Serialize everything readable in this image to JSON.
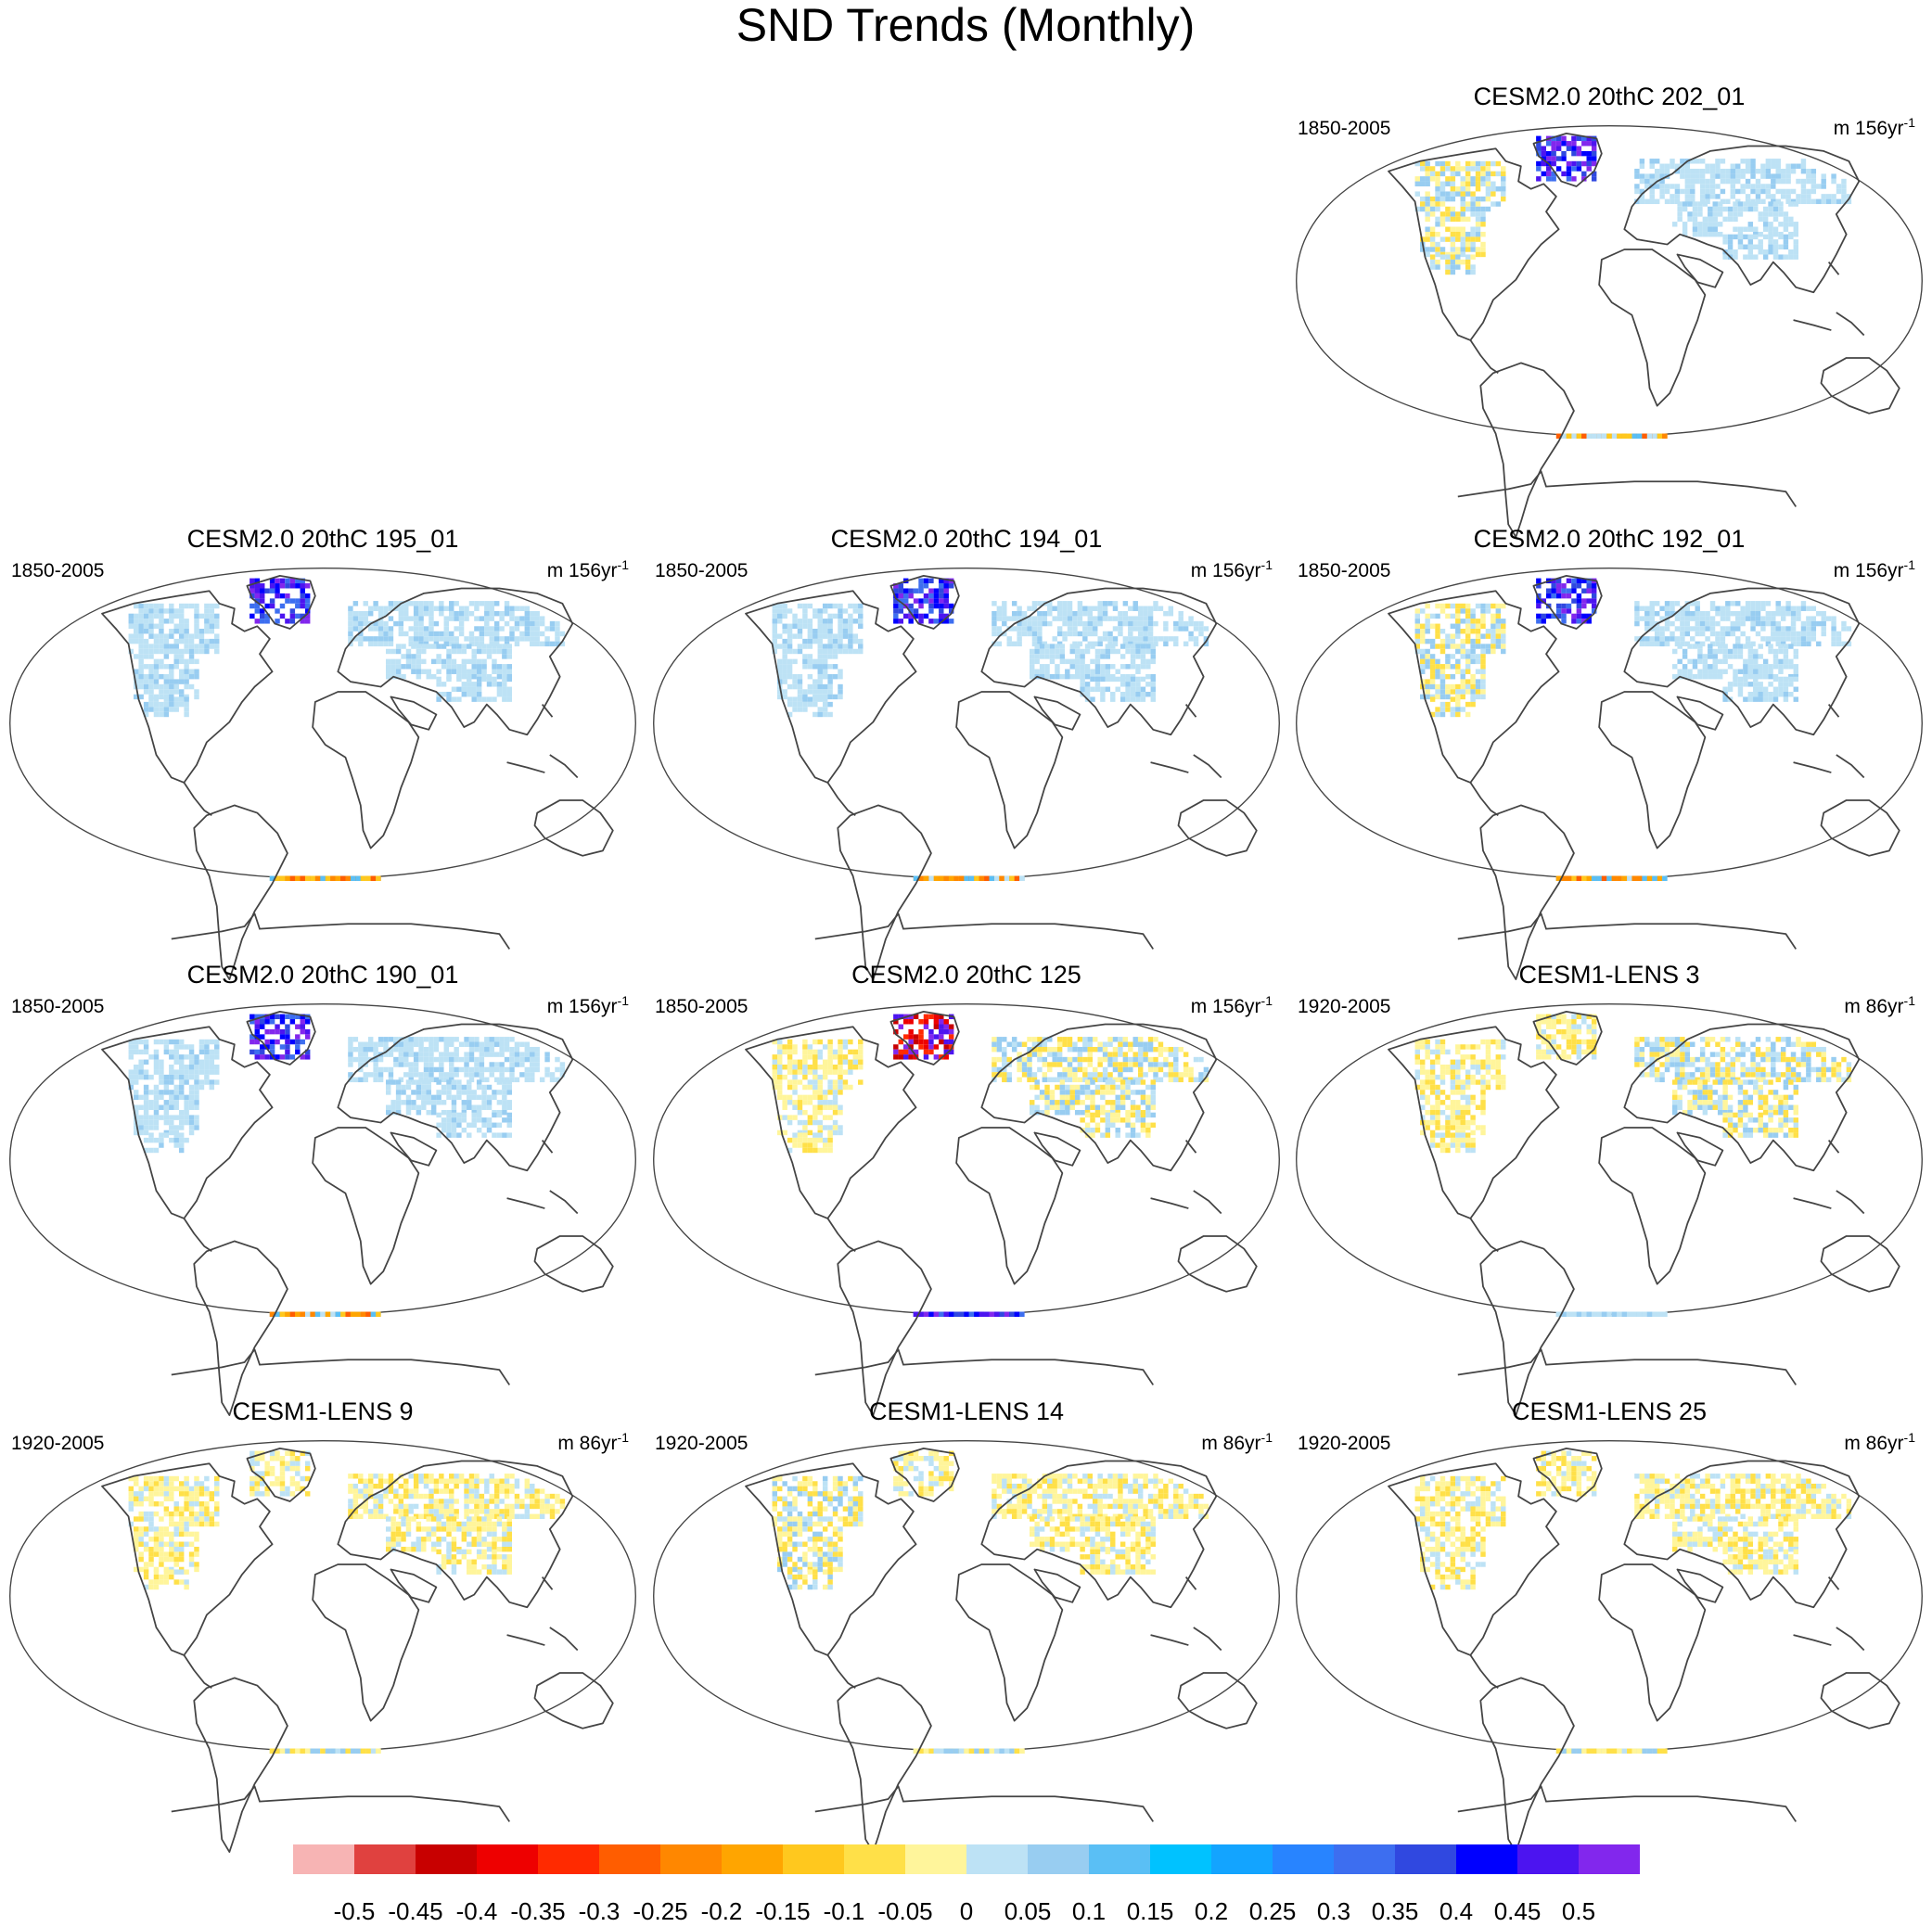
{
  "chart_data": {
    "type": "heatmap",
    "title": "SND Trends (Monthly)",
    "projection": "Robinson (global map panels)",
    "colorbar": {
      "ticks": [
        "-0.5",
        "-0.45",
        "-0.4",
        "-0.35",
        "-0.3",
        "-0.25",
        "-0.2",
        "-0.15",
        "-0.1",
        "-0.05",
        "0",
        "0.05",
        "0.1",
        "0.15",
        "0.2",
        "0.25",
        "0.3",
        "0.35",
        "0.4",
        "0.45",
        "0.5"
      ],
      "colors": [
        "#f7b4b4",
        "#e0413f",
        "#c80000",
        "#ee0000",
        "#ff2a00",
        "#ff5d00",
        "#ff8700",
        "#ffa500",
        "#ffc81e",
        "#ffe048",
        "#fff59b",
        "#bde2f5",
        "#98cdf1",
        "#5abff5",
        "#00c2ff",
        "#13a4ff",
        "#2884ff",
        "#3d6ef0",
        "#3048e0",
        "#0000ff",
        "#4c14f0",
        "#8227ed"
      ]
    },
    "panels": [
      {
        "title": "CESM2.0 20thC 202_01",
        "period": "1850-2005",
        "units": "m 156yr",
        "units_exp": "-1",
        "pattern": {
          "north_america": "mixed",
          "greenland": "positive-strong",
          "eurasia": "positive-weak",
          "antarctica": "negative"
        }
      },
      {
        "title": "CESM2.0 20thC 195_01",
        "period": "1850-2005",
        "units": "m 156yr",
        "units_exp": "-1",
        "pattern": {
          "north_america": "positive-weak",
          "greenland": "positive-strong",
          "eurasia": "positive-weak",
          "antarctica": "negative"
        }
      },
      {
        "title": "CESM2.0 20thC 194_01",
        "period": "1850-2005",
        "units": "m 156yr",
        "units_exp": "-1",
        "pattern": {
          "north_america": "positive-weak",
          "greenland": "positive-strong",
          "eurasia": "positive-weak",
          "antarctica": "negative"
        }
      },
      {
        "title": "CESM2.0 20thC 192_01",
        "period": "1850-2005",
        "units": "m 156yr",
        "units_exp": "-1",
        "pattern": {
          "north_america": "mixed",
          "greenland": "positive-strong",
          "eurasia": "positive-weak",
          "antarctica": "negative"
        }
      },
      {
        "title": "CESM2.0 20thC 190_01",
        "period": "1850-2005",
        "units": "m 156yr",
        "units_exp": "-1",
        "pattern": {
          "north_america": "positive-weak",
          "greenland": "positive-strong",
          "eurasia": "positive-weak",
          "antarctica": "negative"
        }
      },
      {
        "title": "CESM2.0 20thC 125",
        "period": "1850-2005",
        "units": "m 156yr",
        "units_exp": "-1",
        "pattern": {
          "north_america": "negative-weak",
          "greenland": "negative-strong",
          "eurasia": "mixed",
          "antarctica": "positive-strong"
        }
      },
      {
        "title": "CESM1-LENS 3",
        "period": "1920-2005",
        "units": "m 86yr",
        "units_exp": "-1",
        "pattern": {
          "north_america": "negative-weak",
          "greenland": "negative-weak",
          "eurasia": "mixed",
          "antarctica": "positive-weak"
        }
      },
      {
        "title": "CESM1-LENS 9",
        "period": "1920-2005",
        "units": "m 86yr",
        "units_exp": "-1",
        "pattern": {
          "north_america": "negative-weak",
          "greenland": "negative-weak",
          "eurasia": "negative-weak",
          "antarctica": "mixed"
        }
      },
      {
        "title": "CESM1-LENS 14",
        "period": "1920-2005",
        "units": "m 86yr",
        "units_exp": "-1",
        "pattern": {
          "north_america": "mixed",
          "greenland": "negative-weak",
          "eurasia": "negative-weak",
          "antarctica": "mixed"
        }
      },
      {
        "title": "CESM1-LENS 25",
        "period": "1920-2005",
        "units": "m 86yr",
        "units_exp": "-1",
        "pattern": {
          "north_america": "negative-weak",
          "greenland": "negative-weak",
          "eurasia": "negative-weak",
          "antarctica": "mixed"
        }
      }
    ]
  }
}
